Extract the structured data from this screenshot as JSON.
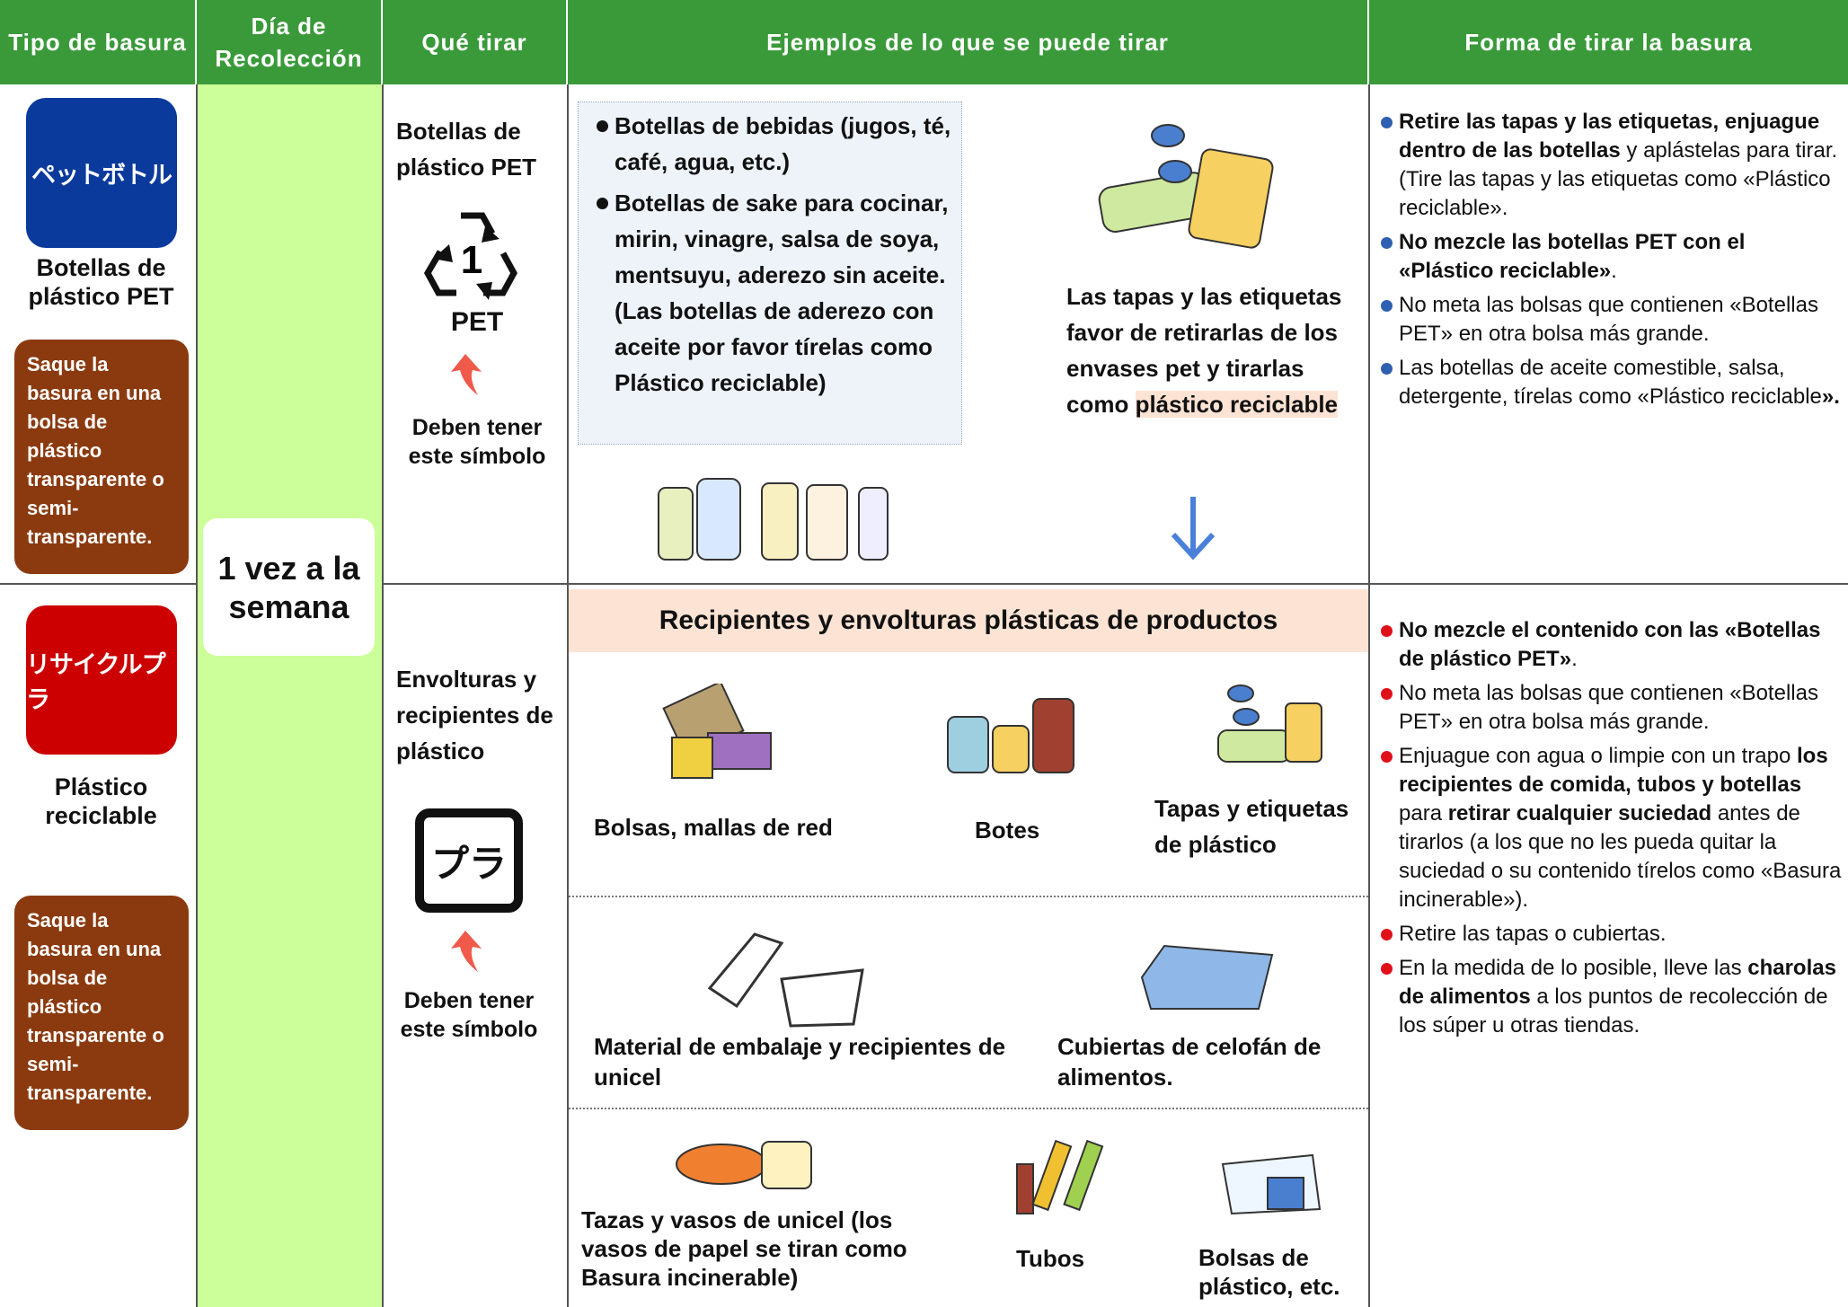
{
  "header": {
    "columns": [
      "Tipo de basura",
      "Día de Recolección",
      "Qué tirar",
      "Ejemplos de lo que se puede tirar",
      "Forma de tirar la basura"
    ]
  },
  "collection_day": "1 vez a la semana",
  "rows": [
    {
      "badge": "ペットボトル",
      "type_name": "Botellas de plástico PET",
      "instruction": "Saque la basura en una bolsa de plástico transparente o semi-transparente.",
      "what": "Botellas de plástico PET",
      "symbol_number": "1",
      "symbol_label": "PET",
      "symbol_note": "Deben tener este símbolo",
      "examples": [
        "Botellas de bebidas (jugos, té, café, agua, etc.)",
        "Botellas de sake para cocinar, mirin, vinagre, salsa de soya, mentsuyu, aderezo sin aceite. (Las botellas de aderezo con aceite por favor tírelas como Plástico reciclable)"
      ],
      "note": "Las tapas y las etiquetas favor de retirarlas de los envases pet y tirarlas como ",
      "note_highlight": "plástico reciclable",
      "disposal": [
        [
          {
            "text": "Retire las tapas y las etiquetas, enjuague dentro de las botellas",
            "bold": true
          },
          {
            "text": " y aplástelas para tirar. (Tire las tapas y las etiquetas como «Plástico reciclable».",
            "bold": false
          }
        ],
        [
          {
            "text": "No mezcle las botellas PET con el «Plástico reciclable»",
            "bold": true
          },
          {
            "text": ".",
            "bold": false
          }
        ],
        [
          {
            "text": "No meta las bolsas que contienen «Botellas PET» en otra bolsa más grande.",
            "bold": false
          }
        ],
        [
          {
            "text": "Las botellas de aceite comestible, salsa, detergente, tírelas como «Plástico reciclable",
            "bold": false
          },
          {
            "text": "».",
            "bold": true
          }
        ]
      ]
    },
    {
      "badge": "リサイクルプラ",
      "type_name": "Plástico reciclable",
      "instruction": "Saque la basura en una bolsa de plástico transparente o semi-transparente.",
      "what": "Envolturas y recipientes de plástico",
      "symbol_text": "プラ",
      "symbol_note": "Deben tener este símbolo",
      "examples_heading": "Recipientes y envolturas plásticas de productos",
      "example_items": [
        "Bolsas, mallas de red",
        "Botes",
        "Tapas y etiquetas de plástico",
        "Material de embalaje y recipientes de unicel",
        "Cubiertas de celofán de alimentos.",
        "Tazas y vasos de unicel (los vasos de papel se tiran como Basura incinerable)",
        "Tubos",
        "Bolsas de plástico, etc."
      ],
      "disposal": [
        [
          {
            "text": "No mezcle el contenido con las «Botellas de plástico PET»",
            "bold": true
          },
          {
            "text": ".",
            "bold": false
          }
        ],
        [
          {
            "text": "No meta las bolsas que contienen «Botellas PET» en otra bolsa más grande.",
            "bold": false
          }
        ],
        [
          {
            "text": "Enjuague con agua o limpie con un trapo ",
            "bold": false
          },
          {
            "text": "los recipientes de comida, tubos y botellas",
            "bold": true
          },
          {
            "text": " para ",
            "bold": false
          },
          {
            "text": "retirar cualquier suciedad",
            "bold": true
          },
          {
            "text": " antes de tirarlos (a los que no les pueda quitar la suciedad o su contenido tírelos como «Basura incinerable»).",
            "bold": false
          }
        ],
        [
          {
            "text": "Retire las tapas o cubiertas.",
            "bold": false
          }
        ],
        [
          {
            "text": "En la medida de lo posible, lleve las ",
            "bold": false
          },
          {
            "text": "charolas de alimentos",
            "bold": true
          },
          {
            "text": " a los puntos de recolección de los súper u otras tiendas.",
            "bold": false
          }
        ]
      ]
    }
  ]
}
